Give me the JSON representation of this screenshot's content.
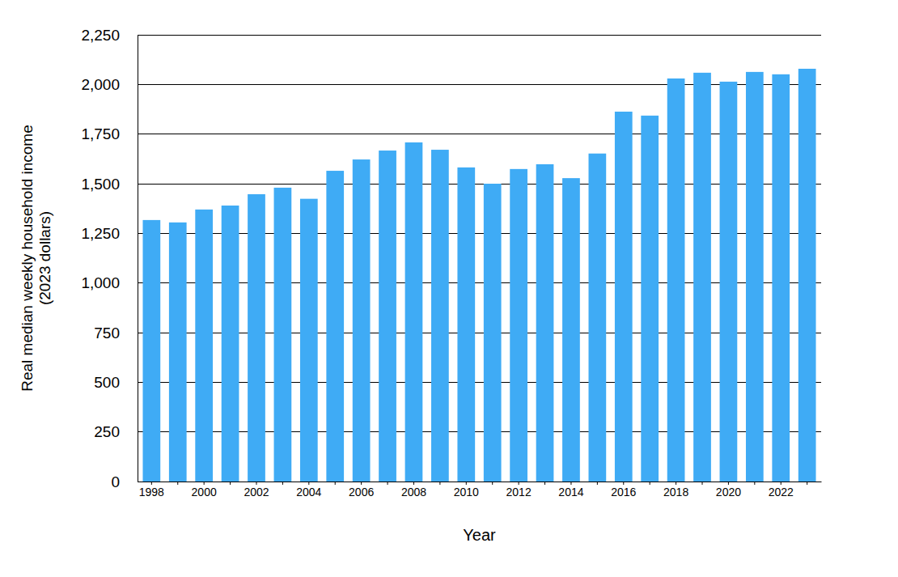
{
  "chart_data": {
    "type": "bar",
    "xlabel": "Year",
    "ylabel": "Real median weekly household income\n(2023 dollars)",
    "categories": [
      "1998",
      null,
      "2000",
      null,
      "2002",
      null,
      "2004",
      null,
      "2006",
      null,
      "2008",
      null,
      "2010",
      null,
      "2012",
      null,
      "2014",
      null,
      "2016",
      null,
      "2018",
      null,
      "2020",
      null,
      "2022",
      null
    ],
    "values": [
      1317,
      1305,
      1370,
      1390,
      1447,
      1480,
      1424,
      1565,
      1622,
      1667,
      1708,
      1671,
      1582,
      1500,
      1574,
      1598,
      1528,
      1652,
      1863,
      1843,
      2030,
      2059,
      2014,
      2063,
      2051,
      2079
    ],
    "color": "#3fabf5",
    "ylim": [
      0,
      2250
    ],
    "yticks": [
      0,
      250,
      500,
      750,
      {
        "value": 1000,
        "label": "1,000"
      },
      {
        "value": 1250,
        "label": "1,250"
      },
      {
        "value": 1500,
        "label": "1,500"
      },
      {
        "value": 1750,
        "label": "1,750"
      },
      {
        "value": 2000,
        "label": "2,000"
      },
      {
        "value": 2250,
        "label": "2,250"
      }
    ],
    "grid": true
  }
}
